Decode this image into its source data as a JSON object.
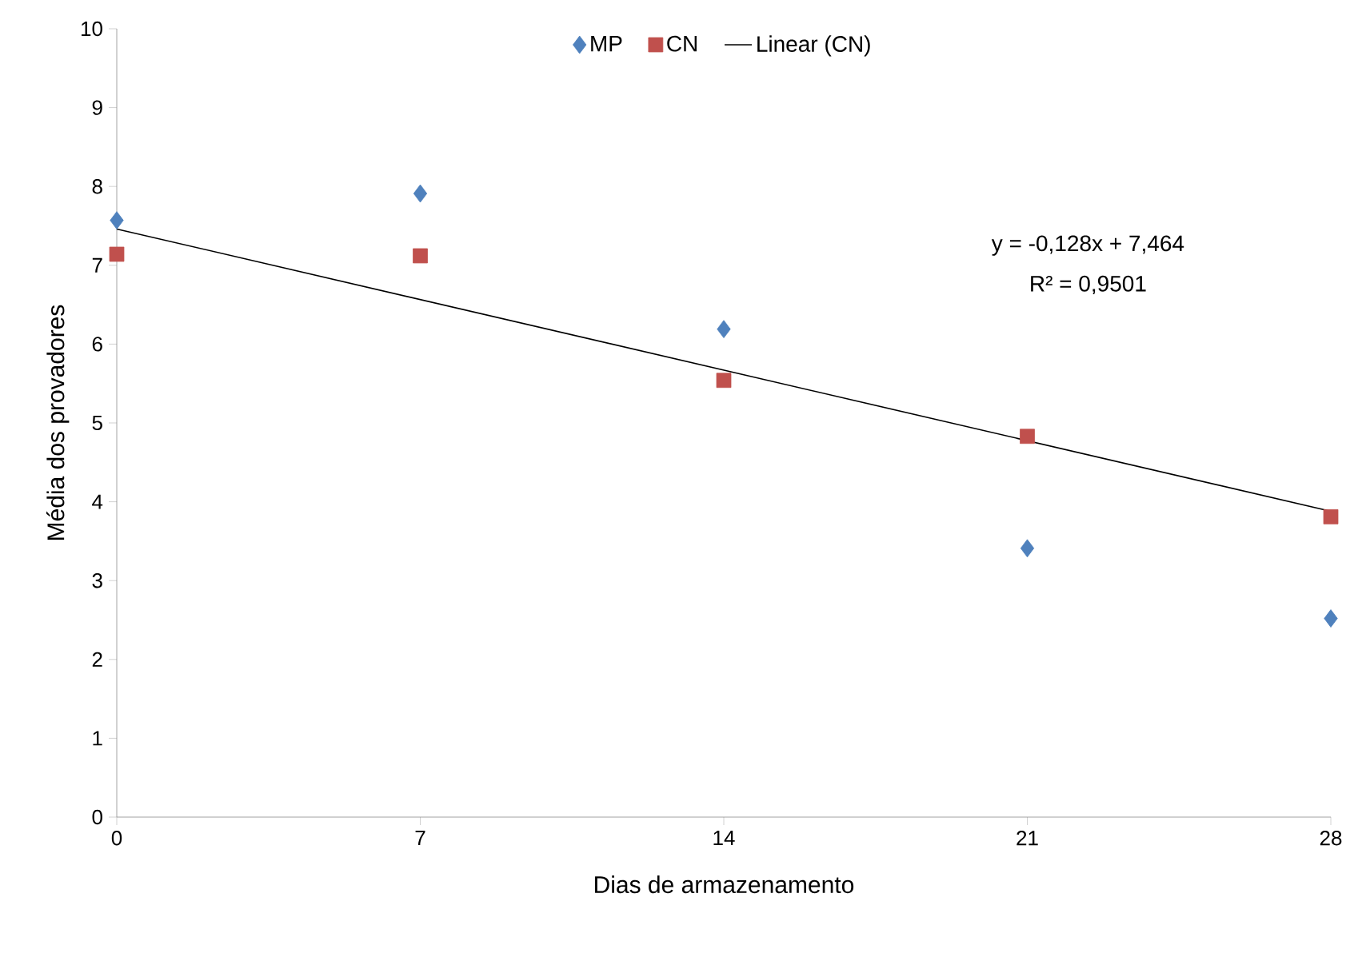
{
  "chart_data": {
    "type": "scatter",
    "xlabel": "Dias de armazenamento",
    "ylabel": "Média dos provadores",
    "xlim": [
      0,
      28
    ],
    "xticks": [
      0,
      7,
      14,
      21,
      28
    ],
    "ylim": [
      0,
      10
    ],
    "yticks": [
      0,
      1,
      2,
      3,
      4,
      5,
      6,
      7,
      8,
      9,
      10
    ],
    "grid": false,
    "legend": "top",
    "series": [
      {
        "name": "MP",
        "color": "#4f81bd",
        "marker": "diamond",
        "x": [
          0,
          7,
          14,
          21,
          28
        ],
        "values": [
          7.57,
          7.91,
          6.19,
          3.41,
          2.52
        ]
      },
      {
        "name": "CN",
        "color": "#c0504d",
        "marker": "square",
        "x": [
          0,
          7,
          14,
          21,
          28
        ],
        "values": [
          7.14,
          7.12,
          5.54,
          4.83,
          3.81
        ]
      },
      {
        "name": "Linear (CN)",
        "type": "line",
        "color": "#000000",
        "marker": "none",
        "x": [
          0,
          28
        ],
        "values": [
          7.46,
          3.88
        ]
      }
    ],
    "annotations": [
      "y = -0,128x + 7,464",
      "R² = 0,9501"
    ]
  }
}
